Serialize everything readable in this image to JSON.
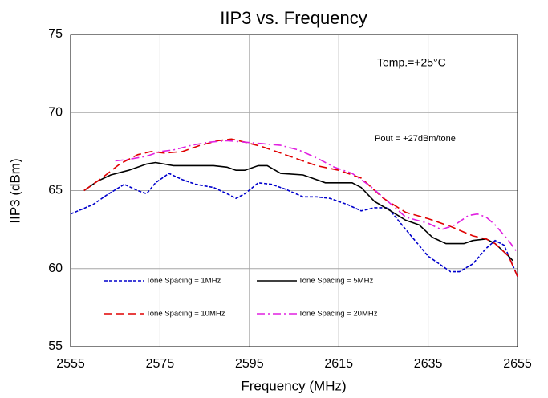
{
  "chart_data": {
    "type": "line",
    "title": "IIP3 vs. Frequency",
    "xlabel": "Frequency (MHz)",
    "ylabel": "IIP3 (dBm)",
    "annotations": [
      "Temp.=+25°C",
      "Pout = +27dBm/tone"
    ],
    "xlim": [
      2555,
      2655
    ],
    "xticks": [
      2555,
      2575,
      2595,
      2615,
      2635,
      2655
    ],
    "ylim": [
      55,
      75
    ],
    "yticks": [
      55,
      60,
      65,
      70,
      75
    ],
    "grid": true,
    "series": [
      {
        "name": "Tone Spacing = 1MHz",
        "color": "#0000cc",
        "style": "dashed",
        "x": [
          2555,
          2560,
          2563,
          2567,
          2570,
          2572,
          2574,
          2577,
          2580,
          2583,
          2587,
          2590,
          2592,
          2594,
          2597,
          2600,
          2603,
          2607,
          2610,
          2613,
          2617,
          2620,
          2623,
          2626,
          2630,
          2635,
          2640,
          2642,
          2645,
          2648,
          2650,
          2652,
          2655
        ],
        "values": [
          63.5,
          64.1,
          64.7,
          65.4,
          65.0,
          64.8,
          65.5,
          66.1,
          65.7,
          65.4,
          65.2,
          64.8,
          64.5,
          64.8,
          65.5,
          65.4,
          65.1,
          64.6,
          64.6,
          64.5,
          64.1,
          63.7,
          63.9,
          63.9,
          62.5,
          60.8,
          59.8,
          59.8,
          60.3,
          61.3,
          61.8,
          61.5,
          59.5
        ]
      },
      {
        "name": "Tone Spacing = 5MHz",
        "color": "#000000",
        "style": "solid",
        "x": [
          2558,
          2561,
          2564,
          2568,
          2572,
          2574,
          2578,
          2583,
          2587,
          2590,
          2592,
          2594,
          2597,
          2599,
          2602,
          2607,
          2609,
          2612,
          2615,
          2618,
          2620,
          2623,
          2626,
          2630,
          2633,
          2636,
          2639,
          2643,
          2645,
          2648,
          2650,
          2653,
          2654
        ],
        "values": [
          65.0,
          65.6,
          66.0,
          66.3,
          66.7,
          66.8,
          66.6,
          66.6,
          66.6,
          66.5,
          66.3,
          66.3,
          66.6,
          66.6,
          66.1,
          66.0,
          65.8,
          65.5,
          65.5,
          65.5,
          65.2,
          64.3,
          63.8,
          63.1,
          62.8,
          62.0,
          61.6,
          61.6,
          61.8,
          61.9,
          61.6,
          60.8,
          60.5
        ]
      },
      {
        "name": "Tone Spacing = 10MHz",
        "color": "#e00000",
        "style": "longdash",
        "x": [
          2558,
          2562,
          2566,
          2570,
          2573,
          2576,
          2580,
          2584,
          2588,
          2591,
          2594,
          2598,
          2602,
          2606,
          2610,
          2615,
          2620,
          2625,
          2630,
          2635,
          2640,
          2645,
          2648,
          2650,
          2653,
          2655
        ],
        "values": [
          65.0,
          65.8,
          66.7,
          67.3,
          67.5,
          67.4,
          67.5,
          67.9,
          68.2,
          68.3,
          68.1,
          67.8,
          67.4,
          67.0,
          66.6,
          66.3,
          65.8,
          64.5,
          63.6,
          63.2,
          62.7,
          62.1,
          61.9,
          61.6,
          60.8,
          59.5
        ]
      },
      {
        "name": "Tone Spacing = 20MHz",
        "color": "#e020e0",
        "style": "dashdot",
        "x": [
          2565,
          2568,
          2572,
          2575,
          2578,
          2582,
          2586,
          2590,
          2594,
          2598,
          2602,
          2606,
          2610,
          2614,
          2618,
          2622,
          2626,
          2630,
          2635,
          2638,
          2641,
          2644,
          2646,
          2648,
          2650,
          2653,
          2655
        ],
        "values": [
          66.9,
          67.0,
          67.2,
          67.5,
          67.6,
          67.9,
          68.1,
          68.2,
          68.1,
          68.0,
          67.9,
          67.6,
          67.1,
          66.5,
          66.1,
          65.3,
          64.3,
          63.3,
          62.9,
          62.5,
          62.8,
          63.4,
          63.5,
          63.3,
          62.8,
          61.8,
          61.0
        ]
      }
    ]
  }
}
